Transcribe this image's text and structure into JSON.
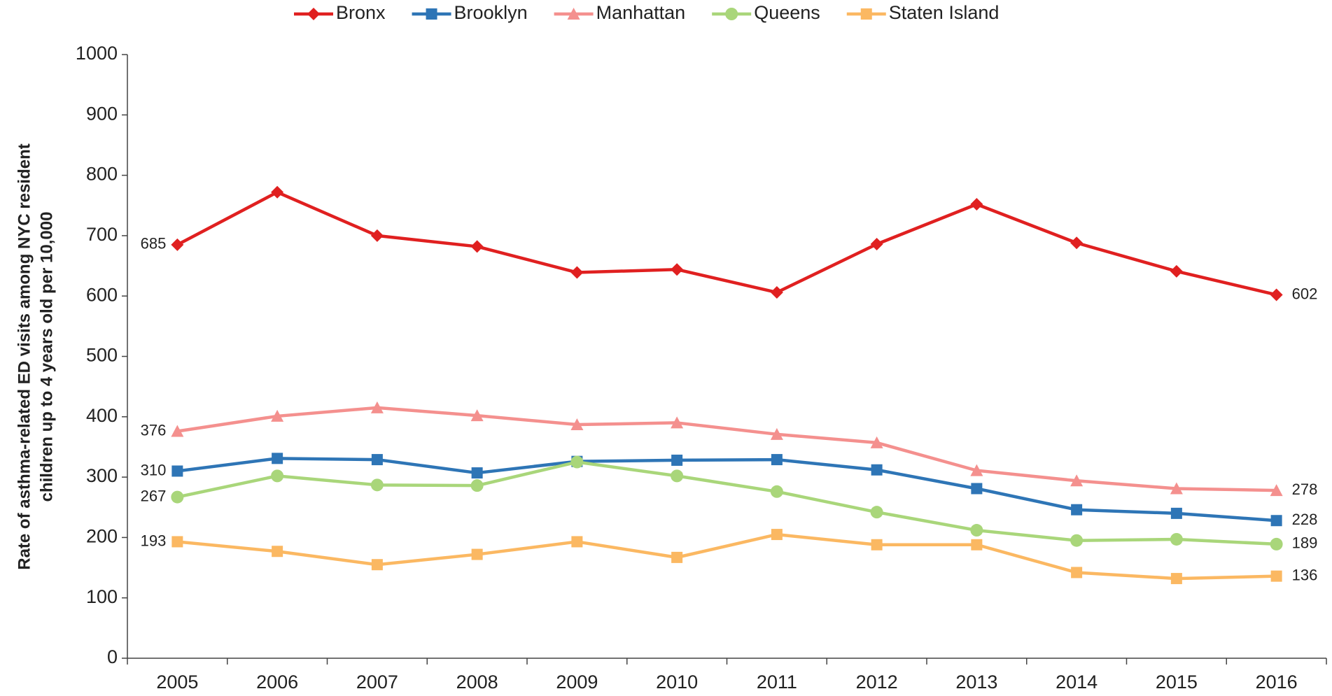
{
  "chart_data": {
    "type": "line",
    "y_label": [
      "Rate of asthma-related ED visits among NYC resident",
      "children up to 4 years old per 10,000"
    ],
    "categories": [
      "2005",
      "2006",
      "2007",
      "2008",
      "2009",
      "2010",
      "2011",
      "2012",
      "2013",
      "2014",
      "2015",
      "2016"
    ],
    "series": [
      {
        "name": "Bronx",
        "color": "#e02020",
        "marker": "diamond",
        "values": [
          685,
          772,
          700,
          682,
          639,
          644,
          606,
          686,
          752,
          688,
          641,
          602
        ]
      },
      {
        "name": "Brooklyn",
        "color": "#2e75b6",
        "marker": "square",
        "values": [
          310,
          331,
          329,
          307,
          326,
          328,
          329,
          312,
          281,
          246,
          240,
          228
        ]
      },
      {
        "name": "Manhattan",
        "color": "#f4908e",
        "marker": "triangle",
        "values": [
          376,
          401,
          415,
          402,
          387,
          390,
          371,
          357,
          311,
          294,
          281,
          278
        ]
      },
      {
        "name": "Queens",
        "color": "#a9d67a",
        "marker": "circle",
        "values": [
          267,
          302,
          287,
          286,
          325,
          302,
          276,
          242,
          212,
          195,
          197,
          189
        ]
      },
      {
        "name": "Staten Island",
        "color": "#fbb862",
        "marker": "square",
        "values": [
          193,
          177,
          155,
          172,
          193,
          167,
          205,
          188,
          188,
          142,
          132,
          136
        ]
      }
    ],
    "ylim": [
      0,
      1000
    ],
    "yticks": [
      0,
      100,
      200,
      300,
      400,
      500,
      600,
      700,
      800,
      900,
      1000
    ],
    "legend": "top"
  }
}
